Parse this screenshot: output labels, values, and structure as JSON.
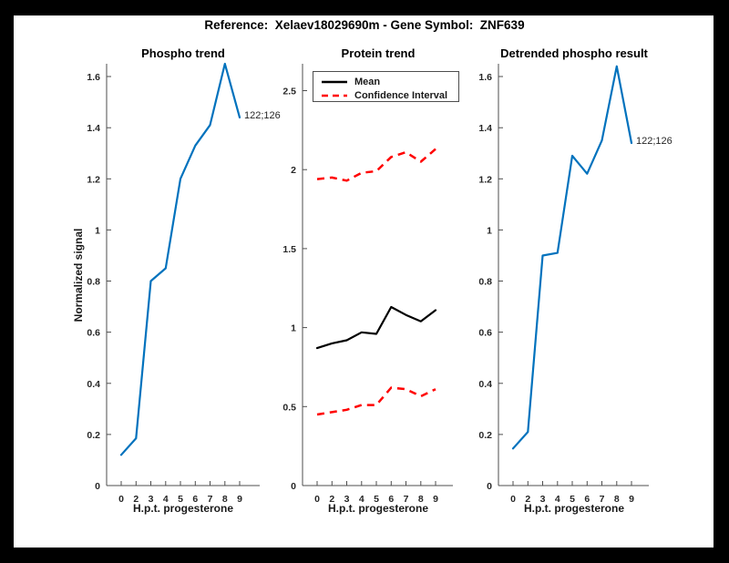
{
  "figure": {
    "title": "Reference:  Xelaev18029690m - Gene Symbol:  ZNF639",
    "background_color": "#000000",
    "paper_color": "#ffffff",
    "axis_color": "#4d4d4d",
    "tick_text_color": "#262626"
  },
  "chart_data": [
    {
      "type": "line",
      "title": "Phospho trend",
      "xlabel": "H.p.t. progesterone",
      "ylabel": "Normalized signal",
      "grid": false,
      "legend_position": "none",
      "categories": [
        "0",
        "2",
        "3",
        "4",
        "5",
        "6",
        "7",
        "8",
        "9"
      ],
      "ylim": [
        0,
        1.65
      ],
      "ytick_values": [
        0,
        0.2,
        0.4,
        0.6,
        0.8,
        1,
        1.2,
        1.4,
        1.6
      ],
      "ytick_labels": [
        "0",
        "0.2",
        "0.4",
        "0.6",
        "0.8",
        "1",
        "1.2",
        "1.4",
        "1.6"
      ],
      "series": [
        {
          "name": "Phospho trend",
          "color": "#0072BD",
          "style": "solid",
          "values": [
            0.12,
            0.185,
            0.8,
            0.85,
            1.2,
            1.33,
            1.41,
            1.65,
            1.44
          ]
        }
      ],
      "annotation": {
        "text": "122;126",
        "attached_to": "last-point"
      }
    },
    {
      "type": "line",
      "title": "Protein trend",
      "xlabel": "H.p.t. progesterone",
      "ylabel": "",
      "grid": false,
      "legend_position": "northeast",
      "categories": [
        "0",
        "2",
        "3",
        "4",
        "5",
        "6",
        "7",
        "8",
        "9"
      ],
      "ylim": [
        0,
        2.67
      ],
      "ytick_values": [
        0,
        0.5,
        1,
        1.5,
        2,
        2.5
      ],
      "ytick_labels": [
        "0",
        "0.5",
        "1",
        "1.5",
        "2",
        "2.5"
      ],
      "series": [
        {
          "name": "Mean",
          "color": "#000000",
          "style": "solid",
          "values": [
            0.87,
            0.9,
            0.92,
            0.97,
            0.96,
            1.13,
            1.08,
            1.04,
            1.11
          ]
        },
        {
          "name": "Confidence Interval (upper)",
          "color": "#FF0000",
          "style": "dashed",
          "values": [
            1.94,
            1.95,
            1.93,
            1.98,
            1.99,
            2.08,
            2.11,
            2.05,
            2.13
          ]
        },
        {
          "name": "Confidence Interval (lower)",
          "color": "#FF0000",
          "style": "dashed",
          "values": [
            0.45,
            0.465,
            0.48,
            0.51,
            0.51,
            0.62,
            0.61,
            0.565,
            0.61
          ]
        }
      ],
      "legend": {
        "entries": [
          {
            "label": "Mean",
            "color": "#000000",
            "style": "solid"
          },
          {
            "label": "Confidence Interval",
            "color": "#FF0000",
            "style": "dashed"
          }
        ]
      }
    },
    {
      "type": "line",
      "title": "Detrended phospho result",
      "xlabel": "H.p.t. progesterone",
      "ylabel": "",
      "grid": false,
      "legend_position": "none",
      "categories": [
        "0",
        "2",
        "3",
        "4",
        "5",
        "6",
        "7",
        "8",
        "9"
      ],
      "ylim": [
        0,
        1.65
      ],
      "ytick_values": [
        0,
        0.2,
        0.4,
        0.6,
        0.8,
        1,
        1.2,
        1.4,
        1.6
      ],
      "ytick_labels": [
        "0",
        "0.2",
        "0.4",
        "0.6",
        "0.8",
        "1",
        "1.2",
        "1.4",
        "1.6"
      ],
      "series": [
        {
          "name": "Detrended phospho",
          "color": "#0072BD",
          "style": "solid",
          "values": [
            0.145,
            0.21,
            0.9,
            0.91,
            1.29,
            1.22,
            1.35,
            1.64,
            1.34
          ]
        }
      ],
      "annotation": {
        "text": "122;126",
        "attached_to": "last-point"
      }
    }
  ]
}
